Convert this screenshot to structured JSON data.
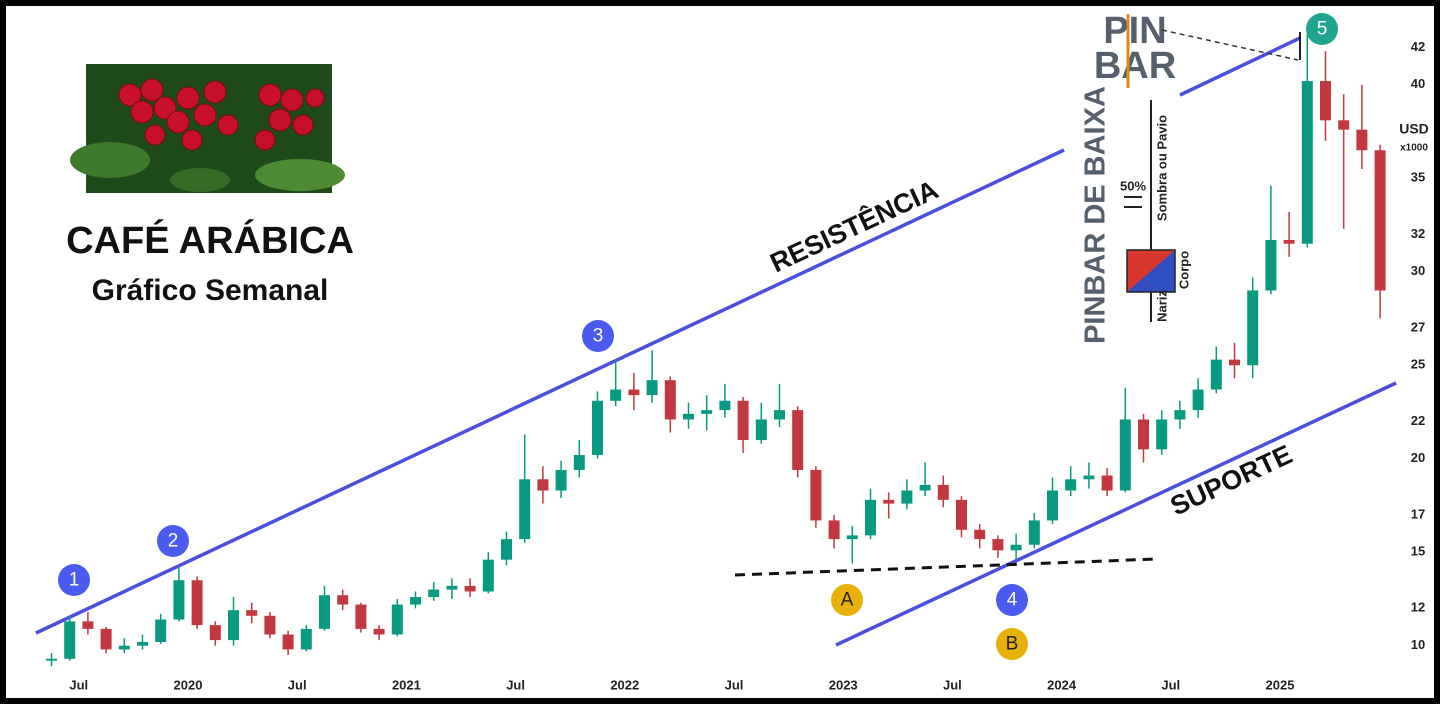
{
  "chart_data": {
    "type": "candlestick",
    "title": "CAFÉ ARÁBICA",
    "subtitle": "Gráfico Semanal",
    "y_axis_label": "USD",
    "y_axis_unit": "x1000",
    "up_color": "#089981",
    "down_color": "#c2383f",
    "grid": false,
    "ylim": [
      8.7,
      44
    ],
    "yticks": [
      10,
      12,
      15,
      17,
      20,
      22,
      25,
      27,
      30,
      32,
      35,
      40,
      42
    ],
    "xticks": [
      {
        "value": "2019-07",
        "label": "Jul"
      },
      {
        "value": "2020-01",
        "label": "2020"
      },
      {
        "value": "2020-07",
        "label": "Jul"
      },
      {
        "value": "2021-01",
        "label": "2021"
      },
      {
        "value": "2021-07",
        "label": "Jul"
      },
      {
        "value": "2022-01",
        "label": "2022"
      },
      {
        "value": "2022-07",
        "label": "Jul"
      },
      {
        "value": "2023-01",
        "label": "2023"
      },
      {
        "value": "2023-07",
        "label": "Jul"
      },
      {
        "value": "2024-01",
        "label": "2024"
      },
      {
        "value": "2024-07",
        "label": "Jul"
      },
      {
        "value": "2025-01",
        "label": "2025"
      }
    ],
    "x": [
      "2019-05",
      "2019-06",
      "2019-07",
      "2019-08",
      "2019-09",
      "2019-10",
      "2019-11",
      "2019-12",
      "2020-01",
      "2020-02",
      "2020-03",
      "2020-04",
      "2020-05",
      "2020-06",
      "2020-07",
      "2020-08",
      "2020-09",
      "2020-10",
      "2020-11",
      "2020-12",
      "2021-01",
      "2021-02",
      "2021-03",
      "2021-04",
      "2021-05",
      "2021-06",
      "2021-07",
      "2021-08",
      "2021-09",
      "2021-10",
      "2021-11",
      "2021-12",
      "2022-01",
      "2022-02",
      "2022-03",
      "2022-04",
      "2022-05",
      "2022-06",
      "2022-07",
      "2022-08",
      "2022-09",
      "2022-10",
      "2022-11",
      "2022-12",
      "2023-01",
      "2023-02",
      "2023-03",
      "2023-04",
      "2023-05",
      "2023-06",
      "2023-07",
      "2023-08",
      "2023-09",
      "2023-10",
      "2023-11",
      "2023-12",
      "2024-01",
      "2024-02",
      "2024-03",
      "2024-04",
      "2024-05",
      "2024-06",
      "2024-07",
      "2024-08",
      "2024-09",
      "2024-10",
      "2024-11",
      "2024-12",
      "2025-01",
      "2025-02",
      "2025-03",
      "2025-04",
      "2025-05",
      "2025-06"
    ],
    "open": [
      9.2,
      9.3,
      11.3,
      10.9,
      9.8,
      10.0,
      10.2,
      11.4,
      13.5,
      11.1,
      10.3,
      11.9,
      11.6,
      10.6,
      9.8,
      10.9,
      12.7,
      12.2,
      10.9,
      10.6,
      12.2,
      12.6,
      13.0,
      13.2,
      12.9,
      14.6,
      15.7,
      18.9,
      18.3,
      19.4,
      20.2,
      23.1,
      23.7,
      23.4,
      24.2,
      22.1,
      22.4,
      22.6,
      23.1,
      21.0,
      22.1,
      22.6,
      19.4,
      16.7,
      15.7,
      15.9,
      17.8,
      17.6,
      18.3,
      18.6,
      17.8,
      16.2,
      15.7,
      15.1,
      15.4,
      16.7,
      18.3,
      18.9,
      19.1,
      18.3,
      22.1,
      20.5,
      22.1,
      22.6,
      23.7,
      25.3,
      25.0,
      29.0,
      31.7,
      31.5,
      40.2,
      38.1,
      37.6,
      36.5
    ],
    "high": [
      9.6,
      11.6,
      11.8,
      11.0,
      10.4,
      10.6,
      11.7,
      14.2,
      13.7,
      11.3,
      12.6,
      12.3,
      11.8,
      10.8,
      11.1,
      13.2,
      13.0,
      12.3,
      11.1,
      12.5,
      12.9,
      13.4,
      13.6,
      13.6,
      15.0,
      16.1,
      21.3,
      19.6,
      19.9,
      21.0,
      23.6,
      25.3,
      24.6,
      25.8,
      24.4,
      23.0,
      23.4,
      24.0,
      23.3,
      23.0,
      24.0,
      22.8,
      19.6,
      17.0,
      16.4,
      18.4,
      18.2,
      18.9,
      19.8,
      19.1,
      18.0,
      16.5,
      15.9,
      16.0,
      17.1,
      19.0,
      19.6,
      19.8,
      19.5,
      23.8,
      22.4,
      22.6,
      23.1,
      24.3,
      26.0,
      26.2,
      29.7,
      34.6,
      33.2,
      42.7,
      41.8,
      39.5,
      40.0,
      36.8
    ],
    "low": [
      8.9,
      9.2,
      10.6,
      9.6,
      9.6,
      9.8,
      10.1,
      11.3,
      10.9,
      10.0,
      10.0,
      11.2,
      10.4,
      9.5,
      9.7,
      10.8,
      11.9,
      10.7,
      10.3,
      10.5,
      12.0,
      12.4,
      12.5,
      12.6,
      12.8,
      14.3,
      15.5,
      17.6,
      17.9,
      19.0,
      20.0,
      22.8,
      22.6,
      23.0,
      21.4,
      21.6,
      21.5,
      22.2,
      20.3,
      20.8,
      21.7,
      19.0,
      16.3,
      15.2,
      14.4,
      15.7,
      16.8,
      17.3,
      18.0,
      17.4,
      15.8,
      15.2,
      14.7,
      14.6,
      15.2,
      16.5,
      18.0,
      18.4,
      18.0,
      18.2,
      19.8,
      20.2,
      21.6,
      22.2,
      23.5,
      24.3,
      24.3,
      28.8,
      30.8,
      31.3,
      37.0,
      32.3,
      35.5,
      27.5
    ],
    "close": [
      9.3,
      11.3,
      10.9,
      9.8,
      10.0,
      10.2,
      11.4,
      13.5,
      11.1,
      10.3,
      11.9,
      11.6,
      10.6,
      9.8,
      10.9,
      12.7,
      12.2,
      10.9,
      10.6,
      12.2,
      12.6,
      13.0,
      13.2,
      12.9,
      14.6,
      15.7,
      18.9,
      18.3,
      19.4,
      20.2,
      23.1,
      23.7,
      23.4,
      24.2,
      22.1,
      22.4,
      22.6,
      23.1,
      21.0,
      22.1,
      22.6,
      19.4,
      16.7,
      15.7,
      15.9,
      17.8,
      17.6,
      18.3,
      18.6,
      17.8,
      16.2,
      15.7,
      15.1,
      15.4,
      16.7,
      18.3,
      18.9,
      19.1,
      18.3,
      22.1,
      20.5,
      22.1,
      22.6,
      23.7,
      25.3,
      25.0,
      29.0,
      31.7,
      31.5,
      40.2,
      38.1,
      37.6,
      36.5,
      29.0
    ],
    "annotations": {
      "resistance": "RESISTÊNCIA",
      "support": "SUPORTE",
      "points": [
        "1",
        "2",
        "3",
        "4",
        "5"
      ],
      "levels": [
        "A",
        "B"
      ]
    },
    "pinbar_legend": {
      "logo": [
        "PIN",
        "BAR"
      ],
      "title": "PINBAR DE BAIXA",
      "half": "50%",
      "shadow": "Sombra ou Pavio",
      "nose": "Nariz",
      "body": "Corpo"
    }
  }
}
